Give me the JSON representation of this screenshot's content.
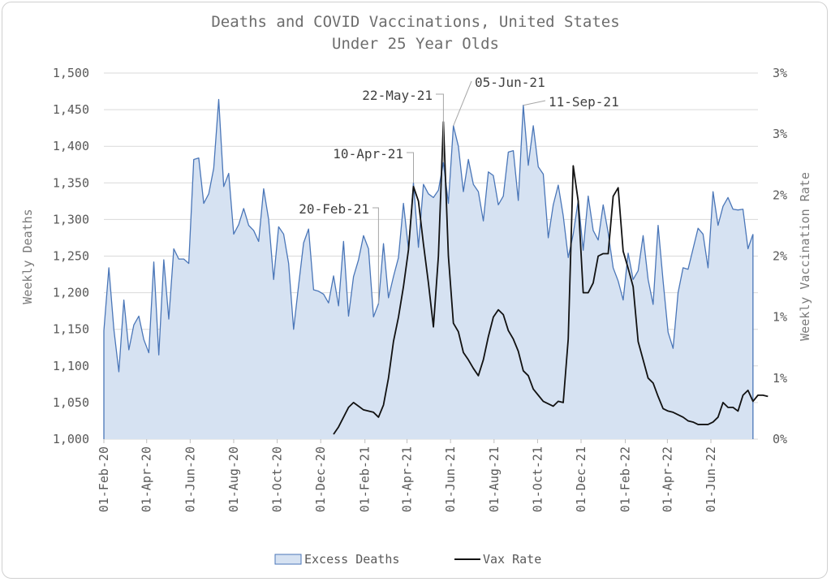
{
  "chart_data": {
    "type": "area+line",
    "title": "Deaths and COVID Vaccinations, United States",
    "subtitle": "Under 25 Year Olds",
    "ylabel": "Weekly Deaths",
    "y2label": "Weekly Vaccination Rate",
    "ylim": [
      1000,
      1500
    ],
    "y_ticks": [
      "1,000",
      "1,050",
      "1,100",
      "1,150",
      "1,200",
      "1,250",
      "1,300",
      "1,350",
      "1,400",
      "1,450",
      "1,500"
    ],
    "y2lim": [
      0,
      3
    ],
    "y2_ticks": [
      "0%",
      "1%",
      "1%",
      "2%",
      "2%",
      "3%",
      "3%"
    ],
    "x_start": "2020-02-01",
    "x_end": "2022-08-06",
    "x_tick_dates": [
      "2020-02-01",
      "2020-04-01",
      "2020-06-01",
      "2020-08-01",
      "2020-10-01",
      "2020-12-01",
      "2021-02-01",
      "2021-04-01",
      "2021-06-01",
      "2021-08-01",
      "2021-10-01",
      "2021-12-01",
      "2022-02-01",
      "2022-04-01",
      "2022-06-01"
    ],
    "x_tick_labels": [
      "01-Feb-20",
      "01-Apr-20",
      "01-Jun-20",
      "01-Aug-20",
      "01-Oct-20",
      "01-Dec-20",
      "01-Feb-21",
      "01-Apr-21",
      "01-Jun-21",
      "01-Aug-21",
      "01-Oct-21",
      "01-Dec-21",
      "01-Feb-22",
      "01-Apr-22",
      "01-Jun-22"
    ],
    "legend_position": "bottom",
    "series": [
      {
        "name": "Excess Deaths",
        "kind": "area",
        "color": "#4a76b8",
        "fill": "#d6e2f2",
        "start": "2020-02-01",
        "step_days": 7,
        "values": [
          1148,
          1234,
          1150,
          1092,
          1190,
          1122,
          1156,
          1168,
          1136,
          1118,
          1242,
          1115,
          1245,
          1164,
          1260,
          1246,
          1246,
          1240,
          1382,
          1384,
          1322,
          1335,
          1370,
          1464,
          1345,
          1363,
          1280,
          1293,
          1315,
          1292,
          1285,
          1270,
          1342,
          1300,
          1218,
          1290,
          1280,
          1240,
          1150,
          1210,
          1268,
          1287,
          1204,
          1202,
          1198,
          1186,
          1223,
          1182,
          1270,
          1168,
          1222,
          1245,
          1278,
          1260,
          1167,
          1185,
          1267,
          1193,
          1222,
          1248,
          1322,
          1260,
          1350,
          1262,
          1348,
          1335,
          1330,
          1340,
          1378,
          1322,
          1428,
          1400,
          1338,
          1382,
          1348,
          1338,
          1298,
          1365,
          1360,
          1320,
          1332,
          1392,
          1394,
          1326,
          1456,
          1374,
          1428,
          1372,
          1362,
          1275,
          1320,
          1347,
          1305,
          1248,
          1280,
          1326,
          1258,
          1332,
          1285,
          1272,
          1320,
          1282,
          1234,
          1216,
          1190,
          1254,
          1218,
          1230,
          1278,
          1218,
          1184,
          1292,
          1216,
          1146,
          1124,
          1200,
          1234,
          1232,
          1260,
          1288,
          1280,
          1234,
          1338,
          1292,
          1318,
          1330,
          1314,
          1313,
          1314,
          1260,
          1280
        ]
      },
      {
        "name": "Vax Rate",
        "kind": "line",
        "axis": "right",
        "color": "#111111",
        "start": "2020-12-19",
        "step_days": 7,
        "values": [
          0.04,
          0.1,
          0.18,
          0.26,
          0.3,
          0.27,
          0.24,
          0.23,
          0.22,
          0.18,
          0.28,
          0.5,
          0.8,
          1.0,
          1.25,
          1.55,
          2.07,
          1.95,
          1.6,
          1.28,
          0.92,
          1.5,
          2.6,
          1.5,
          0.95,
          0.88,
          0.71,
          0.65,
          0.58,
          0.52,
          0.65,
          0.84,
          1.0,
          1.06,
          1.02,
          0.89,
          0.82,
          0.72,
          0.56,
          0.52,
          0.41,
          0.36,
          0.31,
          0.29,
          0.27,
          0.31,
          0.3,
          0.82,
          2.24,
          1.95,
          1.2,
          1.2,
          1.28,
          1.5,
          1.52,
          1.52,
          1.99,
          2.06,
          1.54,
          1.4,
          1.25,
          0.8,
          0.65,
          0.5,
          0.46,
          0.35,
          0.25,
          0.23,
          0.22,
          0.2,
          0.18,
          0.15,
          0.14,
          0.12,
          0.12,
          0.12,
          0.14,
          0.18,
          0.3,
          0.26,
          0.26,
          0.23,
          0.36,
          0.4,
          0.31,
          0.36,
          0.36,
          0.35
        ]
      }
    ],
    "annotations": [
      {
        "label": "20-Feb-21",
        "date": "2021-02-20"
      },
      {
        "label": "10-Apr-21",
        "date": "2021-04-10"
      },
      {
        "label": "22-May-21",
        "date": "2021-05-22"
      },
      {
        "label": "05-Jun-21",
        "date": "2021-06-05"
      },
      {
        "label": "11-Sep-21",
        "date": "2021-09-11"
      }
    ]
  },
  "colors": {
    "grid": "#d9d9d9",
    "annotation_leader": "#a6a6a6"
  }
}
